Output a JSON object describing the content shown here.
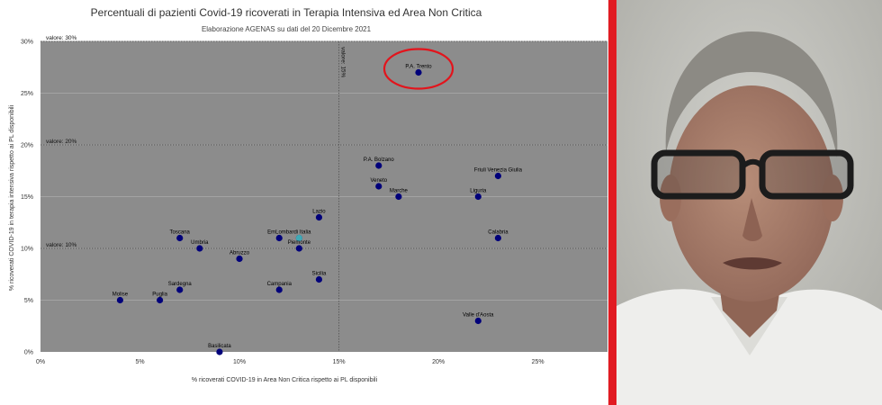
{
  "chart_data": {
    "type": "scatter",
    "title": "Percentuali di pazienti Covid-19 ricoverati in Terapia Intensiva ed Area Non Critica",
    "subtitle": "Elaborazione AGENAS su dati del 20 Dicembre 2021",
    "xlabel": "% ricoverati COVID-19 in Area Non Critica rispetto ai PL disponibili",
    "ylabel": "% ricoverati COVID-19 in terapia intensiva rispetto ai PL disponibili",
    "xlim": [
      0,
      28.5
    ],
    "ylim": [
      0,
      30
    ],
    "x_ticks": [
      {
        "value": 0,
        "label": "0%"
      },
      {
        "value": 5,
        "label": "5%"
      },
      {
        "value": 10,
        "label": "10%"
      },
      {
        "value": 15,
        "label": "15%"
      },
      {
        "value": 20,
        "label": "20%"
      },
      {
        "value": 25,
        "label": "25%"
      }
    ],
    "y_ticks": [
      {
        "value": 0,
        "label": "0%"
      },
      {
        "value": 5,
        "label": "5%"
      },
      {
        "value": 10,
        "label": "10%"
      },
      {
        "value": 15,
        "label": "15%"
      },
      {
        "value": 20,
        "label": "20%"
      },
      {
        "value": 25,
        "label": "25%"
      },
      {
        "value": 30,
        "label": "30%"
      }
    ],
    "h_thresholds": [
      {
        "value": 30,
        "label": "valore: 30%"
      },
      {
        "value": 20,
        "label": "valore: 20%"
      },
      {
        "value": 10,
        "label": "valore: 10%"
      }
    ],
    "v_threshold": {
      "value": 15,
      "label": "valore: 15%"
    },
    "grid": true,
    "highlight": "P.A. Trento",
    "points": [
      {
        "name": "P.A. Trento",
        "x": 19,
        "y": 27
      },
      {
        "name": "P.A. Bolzano",
        "x": 17,
        "y": 18
      },
      {
        "name": "Friuli Venezia Giulia",
        "x": 23,
        "y": 17
      },
      {
        "name": "Veneto",
        "x": 17,
        "y": 16
      },
      {
        "name": "Marche",
        "x": 18,
        "y": 15
      },
      {
        "name": "Liguria",
        "x": 22,
        "y": 15
      },
      {
        "name": "Lazio",
        "x": 14,
        "y": 13
      },
      {
        "name": "Calabria",
        "x": 23,
        "y": 11
      },
      {
        "name": "Toscana",
        "x": 7,
        "y": 11
      },
      {
        "name": "Umbria",
        "x": 8,
        "y": 10
      },
      {
        "name": "Emilia-Romagna",
        "x": 12,
        "y": 11
      },
      {
        "name": "Lombardia",
        "x": 13,
        "y": 11
      },
      {
        "name": "Italia",
        "x": 13,
        "y": 11,
        "color": "#3fa9b5"
      },
      {
        "name": "Piemonte",
        "x": 13,
        "y": 10
      },
      {
        "name": "Abruzzo",
        "x": 10,
        "y": 9
      },
      {
        "name": "Sicilia",
        "x": 14,
        "y": 7
      },
      {
        "name": "Sardegna",
        "x": 7,
        "y": 6
      },
      {
        "name": "Campania",
        "x": 12,
        "y": 6
      },
      {
        "name": "Molise",
        "x": 4,
        "y": 5
      },
      {
        "name": "Puglia",
        "x": 6,
        "y": 5
      },
      {
        "name": "Valle d'Aosta",
        "x": 22,
        "y": 3
      },
      {
        "name": "Basilicata",
        "x": 9,
        "y": 0
      }
    ],
    "point_labels": [
      {
        "text": "P.A. Trento",
        "x": 19,
        "y": 27
      },
      {
        "text": "P.A. Bolzano",
        "x": 17,
        "y": 18
      },
      {
        "text": "Friuli Venezia Giulia",
        "x": 23,
        "y": 17
      },
      {
        "text": "Veneto",
        "x": 17,
        "y": 16
      },
      {
        "text": "Marche",
        "x": 18,
        "y": 15
      },
      {
        "text": "Liguria",
        "x": 22,
        "y": 15
      },
      {
        "text": "Lazio",
        "x": 14,
        "y": 13
      },
      {
        "text": "Calabria",
        "x": 23,
        "y": 11
      },
      {
        "text": "Toscana",
        "x": 7,
        "y": 11
      },
      {
        "text": "Umbria",
        "x": 8,
        "y": 10
      },
      {
        "text": "EmLombardi Italia",
        "x": 12.5,
        "y": 11
      },
      {
        "text": "Piemonte",
        "x": 13,
        "y": 10
      },
      {
        "text": "Abruzzo",
        "x": 10,
        "y": 9
      },
      {
        "text": "Sicilia",
        "x": 14,
        "y": 7
      },
      {
        "text": "Sardegna",
        "x": 7,
        "y": 6
      },
      {
        "text": "Campania",
        "x": 12,
        "y": 6
      },
      {
        "text": "Molise",
        "x": 4,
        "y": 5
      },
      {
        "text": "Puglia",
        "x": 6,
        "y": 5
      },
      {
        "text": "Valle d'Aosta",
        "x": 22,
        "y": 3
      },
      {
        "text": "Basilicata",
        "x": 9,
        "y": 0
      }
    ],
    "colors": {
      "plot_bg": "#8c8c8c",
      "point": "#00007a",
      "grid": "#a3a3a3",
      "threshold": "#5c5c5c",
      "highlight_ring": "#e3141c",
      "text": "#333333"
    }
  },
  "video": {
    "colors": {
      "background": "#bdbdb7",
      "skin": "#a87f6c",
      "hair": "#8c8a84",
      "shirt": "#eeeeec",
      "glasses": "#1c1c1c",
      "divider": "#e11b22"
    }
  }
}
